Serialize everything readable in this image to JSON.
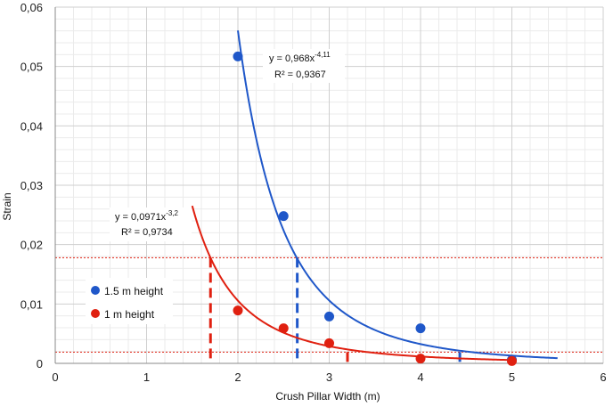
{
  "chart_data": {
    "type": "scatter",
    "title": "",
    "xlabel": "Crush Pillar Width (m)",
    "ylabel": "Strain",
    "xlim": [
      0,
      6
    ],
    "ylim": [
      0,
      0.06
    ],
    "x_ticks": [
      "0",
      "1",
      "2",
      "3",
      "4",
      "5",
      "6"
    ],
    "y_ticks": [
      "0",
      "0,01",
      "0,02",
      "0,03",
      "0,04",
      "0,05",
      "0,06"
    ],
    "grid": true,
    "series": [
      {
        "name": "1.5 m height",
        "color": "#1f57c9",
        "x": [
          2,
          2.5,
          3,
          4,
          5
        ],
        "y": [
          0.0517,
          0.0248,
          0.0079,
          0.0059,
          0.0006
        ],
        "trendline": {
          "type": "power",
          "a": 0.968,
          "b": -4.11,
          "x_range": [
            2,
            5.5
          ],
          "equation": "y = 0,968x",
          "exponent": "-4,11",
          "r2": "R² = 0,9367"
        }
      },
      {
        "name": "1 m height",
        "color": "#e02010",
        "x": [
          2,
          2.5,
          3,
          4,
          5
        ],
        "y": [
          0.0089,
          0.0059,
          0.0034,
          0.0008,
          0.0004
        ],
        "trendline": {
          "type": "power",
          "a": 0.0971,
          "b": -3.2,
          "x_range": [
            1.5,
            5
          ],
          "equation": "y = 0,0971x",
          "exponent": "-3,2",
          "r2": "R² = 0,9734"
        }
      }
    ],
    "reference_lines": {
      "horizontal": [
        0.0178,
        0.0019
      ],
      "vertical": [
        {
          "x": 1.7,
          "y": 0.0178,
          "color": "#e02010"
        },
        {
          "x": 2.65,
          "y": 0.0178,
          "color": "#1f57c9"
        },
        {
          "x": 3.2,
          "y": 0.0019,
          "color": "#e02010"
        },
        {
          "x": 4.43,
          "y": 0.0019,
          "color": "#1f57c9"
        }
      ]
    },
    "legend": {
      "placement": "left-middle",
      "labels": [
        "1.5 m height",
        "1 m height"
      ]
    }
  }
}
